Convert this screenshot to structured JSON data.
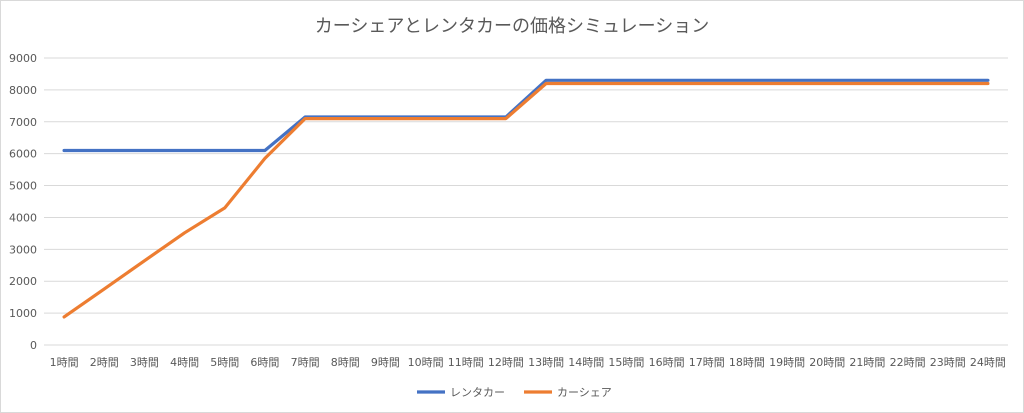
{
  "chart_data": {
    "type": "line",
    "title": "カーシェアとレンタカーの価格シミュレーション",
    "xlabel": "",
    "ylabel": "",
    "categories": [
      "1時間",
      "2時間",
      "3時間",
      "4時間",
      "5時間",
      "6時間",
      "7時間",
      "8時間",
      "9時間",
      "10時間",
      "11時間",
      "12時間",
      "13時間",
      "14時間",
      "15時間",
      "16時間",
      "17時間",
      "18時間",
      "19時間",
      "20時間",
      "21時間",
      "22時間",
      "23時間",
      "24時間"
    ],
    "ylim": [
      0,
      9000
    ],
    "yticks": [
      0,
      1000,
      2000,
      3000,
      4000,
      5000,
      6000,
      7000,
      8000,
      9000
    ],
    "grid": true,
    "legend_position": "bottom",
    "series": [
      {
        "name": "レンタカー",
        "color": "#4472c4",
        "values": [
          6100,
          6100,
          6100,
          6100,
          6100,
          6100,
          7150,
          7150,
          7150,
          7150,
          7150,
          7150,
          8300,
          8300,
          8300,
          8300,
          8300,
          8300,
          8300,
          8300,
          8300,
          8300,
          8300,
          8300
        ]
      },
      {
        "name": "カーシェア",
        "color": "#ed7d31",
        "values": [
          880,
          1760,
          2640,
          3520,
          4300,
          5850,
          7100,
          7100,
          7100,
          7100,
          7100,
          7100,
          8200,
          8200,
          8200,
          8200,
          8200,
          8200,
          8200,
          8200,
          8200,
          8200,
          8200,
          8200
        ]
      }
    ]
  }
}
